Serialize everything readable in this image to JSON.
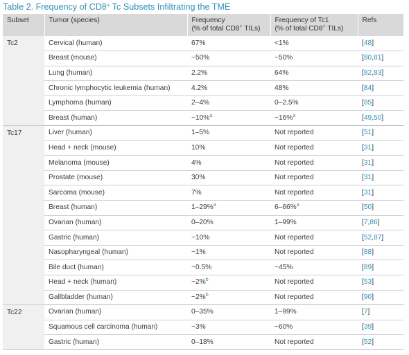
{
  "caption": {
    "prefix": "Table 2. Frequency of CD8",
    "sup": "+",
    "suffix": " Tc Subsets Infiltrating the TME"
  },
  "headers": {
    "subset": "Subset",
    "tumor": "Tumor (species)",
    "freq_line1": "Frequency",
    "freq_line2_prefix": "(% of total CD8",
    "freq_line2_sup": "+",
    "freq_line2_suffix": " TILs)",
    "tc1_line1": "Frequency of Tc1",
    "tc1_line2_prefix": "(% of total CD8",
    "tc1_line2_sup": "+",
    "tc1_line2_suffix": " TILs)",
    "refs": "Refs"
  },
  "groups": [
    {
      "subset": "Tc2",
      "rows": [
        {
          "tumor": "Cervical (human)",
          "frequency": "67%",
          "freq_note": "",
          "tc1": "<1%",
          "tc1_note": "",
          "refs": [
            "48"
          ]
        },
        {
          "tumor": "Breast (mouse)",
          "frequency": "~50%",
          "freq_note": "",
          "tc1": "~50%",
          "tc1_note": "",
          "refs": [
            "80",
            "81"
          ]
        },
        {
          "tumor": "Lung (human)",
          "frequency": "2.2%",
          "freq_note": "",
          "tc1": "64%",
          "tc1_note": "",
          "refs": [
            "82",
            "83"
          ]
        },
        {
          "tumor": "Chronic lymphocytic leukemia (human)",
          "frequency": "4.2%",
          "freq_note": "",
          "tc1": "48%",
          "tc1_note": "",
          "refs": [
            "84"
          ]
        },
        {
          "tumor": "Lymphoma (human)",
          "frequency": "2–4%",
          "freq_note": "",
          "tc1": "0–2.5%",
          "tc1_note": "",
          "refs": [
            "85"
          ]
        },
        {
          "tumor": "Breast (human)",
          "frequency": "~10%",
          "freq_note": "a",
          "tc1": "~16%",
          "tc1_note": "a",
          "refs": [
            "49",
            "50"
          ]
        }
      ]
    },
    {
      "subset": "Tc17",
      "rows": [
        {
          "tumor": "Liver (human)",
          "frequency": "1–5%",
          "freq_note": "",
          "tc1": "Not reported",
          "tc1_note": "",
          "refs": [
            "51"
          ]
        },
        {
          "tumor": "Head + neck (mouse)",
          "frequency": "10%",
          "freq_note": "",
          "tc1": "Not reported",
          "tc1_note": "",
          "refs": [
            "31"
          ]
        },
        {
          "tumor": "Melanoma (mouse)",
          "frequency": "4%",
          "freq_note": "",
          "tc1": "Not reported",
          "tc1_note": "",
          "refs": [
            "31"
          ]
        },
        {
          "tumor": "Prostate (mouse)",
          "frequency": "30%",
          "freq_note": "",
          "tc1": "Not reported",
          "tc1_note": "",
          "refs": [
            "31"
          ]
        },
        {
          "tumor": "Sarcoma (mouse)",
          "frequency": "7%",
          "freq_note": "",
          "tc1": "Not reported",
          "tc1_note": "",
          "refs": [
            "31"
          ]
        },
        {
          "tumor": "Breast (human)",
          "frequency": "1–29%",
          "freq_note": "a",
          "tc1": "6–66%",
          "tc1_note": "a",
          "refs": [
            "50"
          ]
        },
        {
          "tumor": "Ovarian (human)",
          "frequency": "0–20%",
          "freq_note": "",
          "tc1": "1–99%",
          "tc1_note": "",
          "refs": [
            "7",
            "86"
          ]
        },
        {
          "tumor": "Gastric (human)",
          "frequency": "~10%",
          "freq_note": "",
          "tc1": "Not reported",
          "tc1_note": "",
          "refs": [
            "52",
            "87"
          ]
        },
        {
          "tumor": "Nasopharyngeal (human)",
          "frequency": "~1%",
          "freq_note": "",
          "tc1": "Not reported",
          "tc1_note": "",
          "refs": [
            "88"
          ]
        },
        {
          "tumor": "Bile duct (human)",
          "frequency": "~0.5%",
          "freq_note": "",
          "tc1": "~45%",
          "tc1_note": "",
          "refs": [
            "89"
          ]
        },
        {
          "tumor": "Head + neck (human)",
          "frequency": "~2%",
          "freq_note": "b",
          "tc1": "Not reported",
          "tc1_note": "",
          "refs": [
            "53"
          ]
        },
        {
          "tumor": "Gallbladder (human)",
          "frequency": "~2%",
          "freq_note": "b",
          "tc1": "Not reported",
          "tc1_note": "",
          "refs": [
            "90"
          ]
        }
      ]
    },
    {
      "subset": "Tc22",
      "rows": [
        {
          "tumor": "Ovarian (human)",
          "frequency": "0–35%",
          "freq_note": "",
          "tc1": "1–99%",
          "tc1_note": "",
          "refs": [
            "7"
          ]
        },
        {
          "tumor": "Squamous cell carcinoma (human)",
          "frequency": "~3%",
          "freq_note": "",
          "tc1": "~60%",
          "tc1_note": "",
          "refs": [
            "39"
          ]
        },
        {
          "tumor": "Gastric (human)",
          "frequency": "0–18%",
          "freq_note": "",
          "tc1": "Not reported",
          "tc1_note": "",
          "refs": [
            "52"
          ]
        }
      ]
    }
  ],
  "colors": {
    "accent": "#2f8fb9",
    "header_bg": "#d9d9d9",
    "subset_bg": "#f0f0f0"
  }
}
